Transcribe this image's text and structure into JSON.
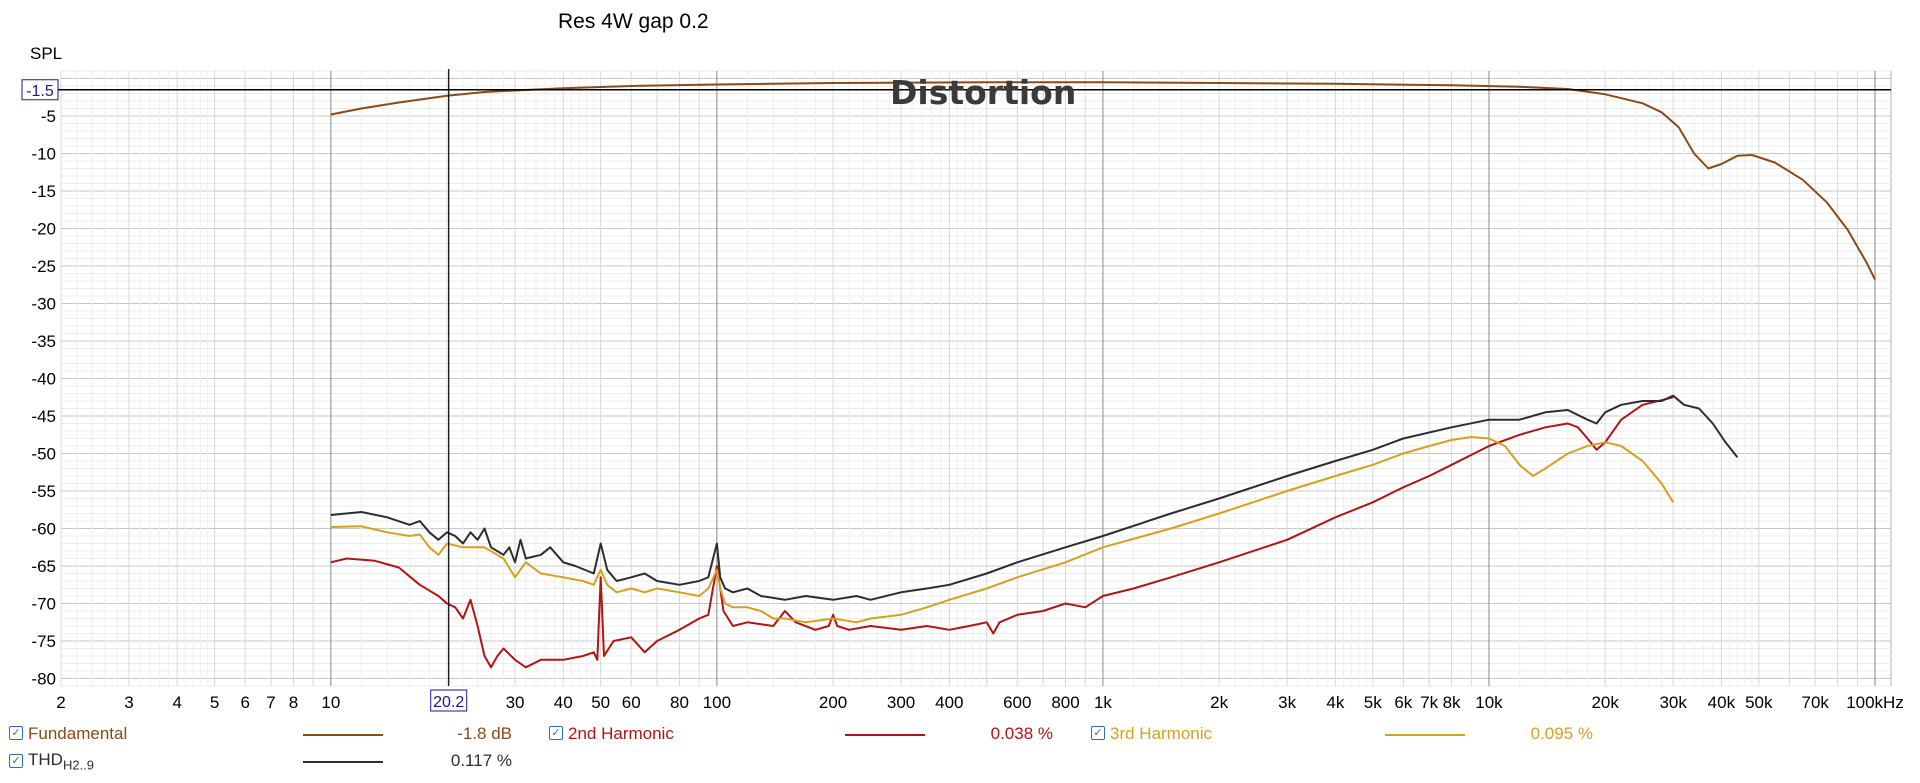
{
  "chart_data": {
    "type": "line",
    "title": "Res 4W gap 0.2",
    "annotation": "Distortion",
    "ylabel": "SPL",
    "xscale": "log",
    "xlim": [
      2,
      110000
    ],
    "ylim": [
      -81,
      1
    ],
    "grid": true,
    "cursor": {
      "x": 20.2,
      "y": -1.5,
      "x_label": "20.2",
      "y_label": "-1.5"
    },
    "y_ticks": [
      -5,
      -10,
      -15,
      -20,
      -25,
      -30,
      -35,
      -40,
      -45,
      -50,
      -55,
      -60,
      -65,
      -70,
      -75,
      -80
    ],
    "x_ticks": [
      {
        "v": 2,
        "label": "2"
      },
      {
        "v": 3,
        "label": "3"
      },
      {
        "v": 4,
        "label": "4"
      },
      {
        "v": 5,
        "label": "5"
      },
      {
        "v": 6,
        "label": "6"
      },
      {
        "v": 7,
        "label": "7"
      },
      {
        "v": 8,
        "label": "8"
      },
      {
        "v": 10,
        "label": "10"
      },
      {
        "v": 30,
        "label": "30"
      },
      {
        "v": 40,
        "label": "40"
      },
      {
        "v": 50,
        "label": "50"
      },
      {
        "v": 60,
        "label": "60"
      },
      {
        "v": 80,
        "label": "80"
      },
      {
        "v": 100,
        "label": "100"
      },
      {
        "v": 200,
        "label": "200"
      },
      {
        "v": 300,
        "label": "300"
      },
      {
        "v": 400,
        "label": "400"
      },
      {
        "v": 600,
        "label": "600"
      },
      {
        "v": 800,
        "label": "800"
      },
      {
        "v": 1000,
        "label": "1k"
      },
      {
        "v": 2000,
        "label": "2k"
      },
      {
        "v": 3000,
        "label": "3k"
      },
      {
        "v": 4000,
        "label": "4k"
      },
      {
        "v": 5000,
        "label": "5k"
      },
      {
        "v": 6000,
        "label": "6k"
      },
      {
        "v": 7000,
        "label": "7k"
      },
      {
        "v": 8000,
        "label": "8k"
      },
      {
        "v": 10000,
        "label": "10k"
      },
      {
        "v": 20000,
        "label": "20k"
      },
      {
        "v": 30000,
        "label": "30k"
      },
      {
        "v": 40000,
        "label": "40k"
      },
      {
        "v": 50000,
        "label": "50k"
      },
      {
        "v": 70000,
        "label": "70k"
      },
      {
        "v": 100000,
        "label": "100kHz"
      }
    ],
    "series": [
      {
        "name": "Fundamental",
        "color": "#8b4a17",
        "value_label": "-1.8 dB",
        "points": [
          [
            10,
            -4.8
          ],
          [
            12,
            -4.0
          ],
          [
            15,
            -3.2
          ],
          [
            20,
            -2.3
          ],
          [
            25,
            -1.8
          ],
          [
            30,
            -1.6
          ],
          [
            40,
            -1.3
          ],
          [
            60,
            -1.0
          ],
          [
            100,
            -0.8
          ],
          [
            200,
            -0.6
          ],
          [
            500,
            -0.5
          ],
          [
            1000,
            -0.5
          ],
          [
            2000,
            -0.6
          ],
          [
            4000,
            -0.7
          ],
          [
            8000,
            -0.9
          ],
          [
            12000,
            -1.1
          ],
          [
            16000,
            -1.4
          ],
          [
            20000,
            -2.1
          ],
          [
            25000,
            -3.3
          ],
          [
            28000,
            -4.5
          ],
          [
            31000,
            -6.5
          ],
          [
            34000,
            -10.0
          ],
          [
            37000,
            -12.0
          ],
          [
            40000,
            -11.4
          ],
          [
            44000,
            -10.3
          ],
          [
            48000,
            -10.2
          ],
          [
            55000,
            -11.2
          ],
          [
            65000,
            -13.5
          ],
          [
            75000,
            -16.5
          ],
          [
            85000,
            -20.2
          ],
          [
            95000,
            -24.5
          ],
          [
            100000,
            -26.8
          ]
        ]
      },
      {
        "name": "2nd Harmonic",
        "color": "#b01515",
        "value_label": "0.038 %",
        "points": [
          [
            10,
            -64.5
          ],
          [
            11,
            -64.0
          ],
          [
            13,
            -64.3
          ],
          [
            15,
            -65.2
          ],
          [
            17,
            -67.5
          ],
          [
            19,
            -69.0
          ],
          [
            20,
            -70.0
          ],
          [
            21,
            -70.5
          ],
          [
            22,
            -72.0
          ],
          [
            23,
            -69.5
          ],
          [
            24,
            -73.0
          ],
          [
            25,
            -77.0
          ],
          [
            26,
            -78.5
          ],
          [
            27,
            -77.0
          ],
          [
            28,
            -76.0
          ],
          [
            30,
            -77.5
          ],
          [
            32,
            -78.5
          ],
          [
            35,
            -77.5
          ],
          [
            40,
            -77.5
          ],
          [
            45,
            -77.0
          ],
          [
            48,
            -76.5
          ],
          [
            49,
            -77.5
          ],
          [
            50,
            -66.5
          ],
          [
            51,
            -77.0
          ],
          [
            54,
            -75.0
          ],
          [
            60,
            -74.5
          ],
          [
            65,
            -76.5
          ],
          [
            70,
            -75.0
          ],
          [
            80,
            -73.5
          ],
          [
            90,
            -72.0
          ],
          [
            95,
            -71.5
          ],
          [
            100,
            -65.0
          ],
          [
            104,
            -71.0
          ],
          [
            110,
            -73.0
          ],
          [
            120,
            -72.5
          ],
          [
            140,
            -73.0
          ],
          [
            150,
            -71.0
          ],
          [
            160,
            -72.5
          ],
          [
            180,
            -73.5
          ],
          [
            195,
            -73.0
          ],
          [
            200,
            -71.5
          ],
          [
            205,
            -73.0
          ],
          [
            220,
            -73.5
          ],
          [
            250,
            -73.0
          ],
          [
            300,
            -73.5
          ],
          [
            350,
            -73.0
          ],
          [
            400,
            -73.5
          ],
          [
            450,
            -73.0
          ],
          [
            500,
            -72.5
          ],
          [
            520,
            -74.0
          ],
          [
            540,
            -72.5
          ],
          [
            600,
            -71.5
          ],
          [
            700,
            -71.0
          ],
          [
            800,
            -70.0
          ],
          [
            900,
            -70.5
          ],
          [
            1000,
            -69.0
          ],
          [
            1200,
            -68.0
          ],
          [
            1500,
            -66.5
          ],
          [
            2000,
            -64.5
          ],
          [
            3000,
            -61.5
          ],
          [
            4000,
            -58.5
          ],
          [
            5000,
            -56.5
          ],
          [
            6000,
            -54.5
          ],
          [
            7000,
            -53.0
          ],
          [
            8000,
            -51.5
          ],
          [
            10000,
            -49.0
          ],
          [
            12000,
            -47.5
          ],
          [
            14000,
            -46.5
          ],
          [
            16000,
            -46.0
          ],
          [
            17000,
            -46.5
          ],
          [
            18000,
            -48.0
          ],
          [
            19000,
            -49.5
          ],
          [
            20000,
            -48.5
          ],
          [
            22000,
            -45.5
          ],
          [
            25000,
            -43.5
          ],
          [
            30000,
            -42.5
          ]
        ]
      },
      {
        "name": "3rd Harmonic",
        "color": "#d6a020",
        "value_label": "0.095 %",
        "points": [
          [
            10,
            -59.8
          ],
          [
            12,
            -59.7
          ],
          [
            14,
            -60.5
          ],
          [
            16,
            -61.0
          ],
          [
            17,
            -60.8
          ],
          [
            18,
            -62.5
          ],
          [
            19,
            -63.5
          ],
          [
            20,
            -62.0
          ],
          [
            22,
            -62.5
          ],
          [
            25,
            -62.5
          ],
          [
            28,
            -64.0
          ],
          [
            30,
            -66.5
          ],
          [
            32,
            -64.5
          ],
          [
            35,
            -66.0
          ],
          [
            40,
            -66.5
          ],
          [
            45,
            -67.0
          ],
          [
            48,
            -67.5
          ],
          [
            50,
            -65.5
          ],
          [
            52,
            -67.5
          ],
          [
            55,
            -68.5
          ],
          [
            60,
            -68.0
          ],
          [
            65,
            -68.5
          ],
          [
            70,
            -68.0
          ],
          [
            80,
            -68.5
          ],
          [
            90,
            -69.0
          ],
          [
            95,
            -68.0
          ],
          [
            100,
            -65.5
          ],
          [
            102,
            -68.0
          ],
          [
            105,
            -70.0
          ],
          [
            110,
            -70.5
          ],
          [
            120,
            -70.5
          ],
          [
            130,
            -71.0
          ],
          [
            140,
            -72.0
          ],
          [
            150,
            -72.0
          ],
          [
            170,
            -72.5
          ],
          [
            200,
            -72.0
          ],
          [
            230,
            -72.5
          ],
          [
            250,
            -72.0
          ],
          [
            300,
            -71.5
          ],
          [
            350,
            -70.5
          ],
          [
            400,
            -69.5
          ],
          [
            500,
            -68.0
          ],
          [
            600,
            -66.5
          ],
          [
            800,
            -64.5
          ],
          [
            1000,
            -62.5
          ],
          [
            1500,
            -60.0
          ],
          [
            2000,
            -58.0
          ],
          [
            3000,
            -55.0
          ],
          [
            4000,
            -53.0
          ],
          [
            5000,
            -51.5
          ],
          [
            6000,
            -50.0
          ],
          [
            7000,
            -49.0
          ],
          [
            8000,
            -48.2
          ],
          [
            9000,
            -47.8
          ],
          [
            10000,
            -48.0
          ],
          [
            11000,
            -49.0
          ],
          [
            12000,
            -51.5
          ],
          [
            13000,
            -53.0
          ],
          [
            14000,
            -52.0
          ],
          [
            16000,
            -50.0
          ],
          [
            18000,
            -49.0
          ],
          [
            20000,
            -48.5
          ],
          [
            22000,
            -49.0
          ],
          [
            25000,
            -51.0
          ],
          [
            28000,
            -54.0
          ],
          [
            30000,
            -56.5
          ]
        ]
      },
      {
        "name": "THD",
        "name_sub": "H2..9",
        "color": "#2d2d2d",
        "value_label": "0.117 %",
        "points": [
          [
            10,
            -58.2
          ],
          [
            12,
            -57.8
          ],
          [
            14,
            -58.5
          ],
          [
            16,
            -59.5
          ],
          [
            17,
            -59.0
          ],
          [
            18,
            -60.5
          ],
          [
            19,
            -61.5
          ],
          [
            20,
            -60.5
          ],
          [
            21,
            -61.0
          ],
          [
            22,
            -62.0
          ],
          [
            23,
            -60.5
          ],
          [
            24,
            -61.5
          ],
          [
            25,
            -60.0
          ],
          [
            26,
            -62.5
          ],
          [
            28,
            -63.5
          ],
          [
            29,
            -62.5
          ],
          [
            30,
            -64.5
          ],
          [
            31,
            -61.5
          ],
          [
            32,
            -64.0
          ],
          [
            35,
            -63.5
          ],
          [
            37,
            -62.5
          ],
          [
            40,
            -64.5
          ],
          [
            43,
            -65.0
          ],
          [
            48,
            -66.0
          ],
          [
            50,
            -62.0
          ],
          [
            52,
            -65.5
          ],
          [
            55,
            -67.0
          ],
          [
            60,
            -66.5
          ],
          [
            65,
            -66.0
          ],
          [
            70,
            -67.0
          ],
          [
            80,
            -67.5
          ],
          [
            90,
            -67.0
          ],
          [
            95,
            -66.5
          ],
          [
            100,
            -62.0
          ],
          [
            102,
            -66.5
          ],
          [
            105,
            -68.0
          ],
          [
            110,
            -68.5
          ],
          [
            120,
            -68.0
          ],
          [
            130,
            -69.0
          ],
          [
            150,
            -69.5
          ],
          [
            170,
            -69.0
          ],
          [
            200,
            -69.5
          ],
          [
            230,
            -69.0
          ],
          [
            250,
            -69.5
          ],
          [
            300,
            -68.5
          ],
          [
            350,
            -68.0
          ],
          [
            400,
            -67.5
          ],
          [
            500,
            -66.0
          ],
          [
            600,
            -64.5
          ],
          [
            800,
            -62.5
          ],
          [
            1000,
            -61.0
          ],
          [
            1500,
            -58.0
          ],
          [
            2000,
            -56.0
          ],
          [
            3000,
            -53.0
          ],
          [
            4000,
            -51.0
          ],
          [
            5000,
            -49.5
          ],
          [
            6000,
            -48.0
          ],
          [
            8000,
            -46.5
          ],
          [
            10000,
            -45.5
          ],
          [
            12000,
            -45.5
          ],
          [
            14000,
            -44.5
          ],
          [
            16000,
            -44.2
          ],
          [
            18000,
            -45.5
          ],
          [
            19000,
            -46.0
          ],
          [
            20000,
            -44.5
          ],
          [
            22000,
            -43.5
          ],
          [
            25000,
            -43.0
          ],
          [
            28000,
            -43.0
          ],
          [
            30000,
            -42.3
          ],
          [
            32000,
            -43.5
          ],
          [
            35000,
            -44.0
          ],
          [
            38000,
            -46.0
          ],
          [
            41000,
            -48.5
          ],
          [
            44000,
            -50.5
          ]
        ]
      }
    ]
  }
}
